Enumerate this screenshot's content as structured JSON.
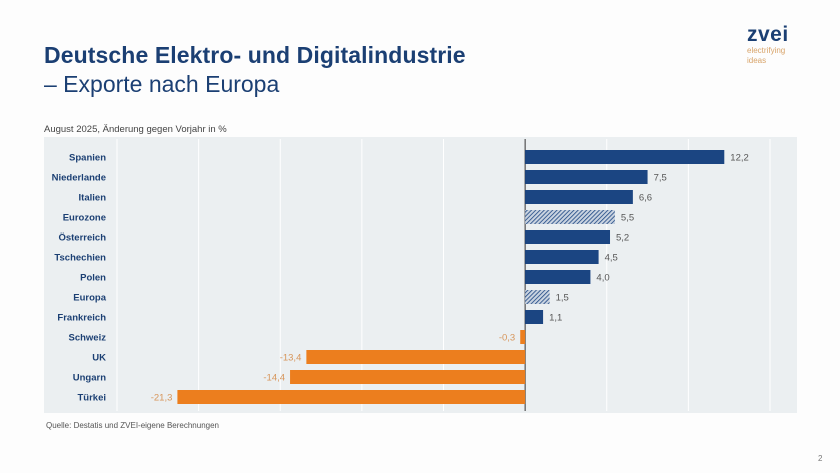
{
  "header": {
    "title_line1": "Deutsche Elektro- und Digitalindustrie",
    "title_line2": "– Exporte nach Europa"
  },
  "logo": {
    "name": "zvei",
    "tagline_line1": "electrifying",
    "tagline_line2": "ideas"
  },
  "footer": {
    "source": "Quelle: Destatis und ZVEI-eigene Berechnungen",
    "page_number": "2"
  },
  "colors": {
    "positive": "#1b4582",
    "negative": "#ec7e1e",
    "aggregate_hatch": "#1b4582",
    "label_positive": "#555555",
    "label_negative": "#d7955a",
    "category_label": "#1b3f73"
  },
  "chart_data": {
    "type": "bar",
    "orientation": "horizontal",
    "title": "",
    "subtitle": "August 2025, Änderung gegen Vorjahr in %",
    "xlabel": "",
    "ylabel": "",
    "xlim": [
      -25,
      15
    ],
    "grid": true,
    "grid_step": 5,
    "categories": [
      "Spanien",
      "Niederlande",
      "Italien",
      "Eurozone",
      "Österreich",
      "Tschechien",
      "Polen",
      "Europa",
      "Frankreich",
      "Schweiz",
      "UK",
      "Ungarn",
      "Türkei"
    ],
    "values": [
      12.2,
      7.5,
      6.6,
      5.5,
      5.2,
      4.5,
      4.0,
      1.5,
      1.1,
      -0.3,
      -13.4,
      -14.4,
      -21.3
    ],
    "value_labels": [
      "12,2",
      "7,5",
      "6,6",
      "5,5",
      "5,2",
      "4,5",
      "4,0",
      "1,5",
      "1,1",
      "-0,3",
      "-13,4",
      "-14,4",
      "-21,3"
    ],
    "hatched": [
      "Eurozone",
      "Europa"
    ]
  }
}
